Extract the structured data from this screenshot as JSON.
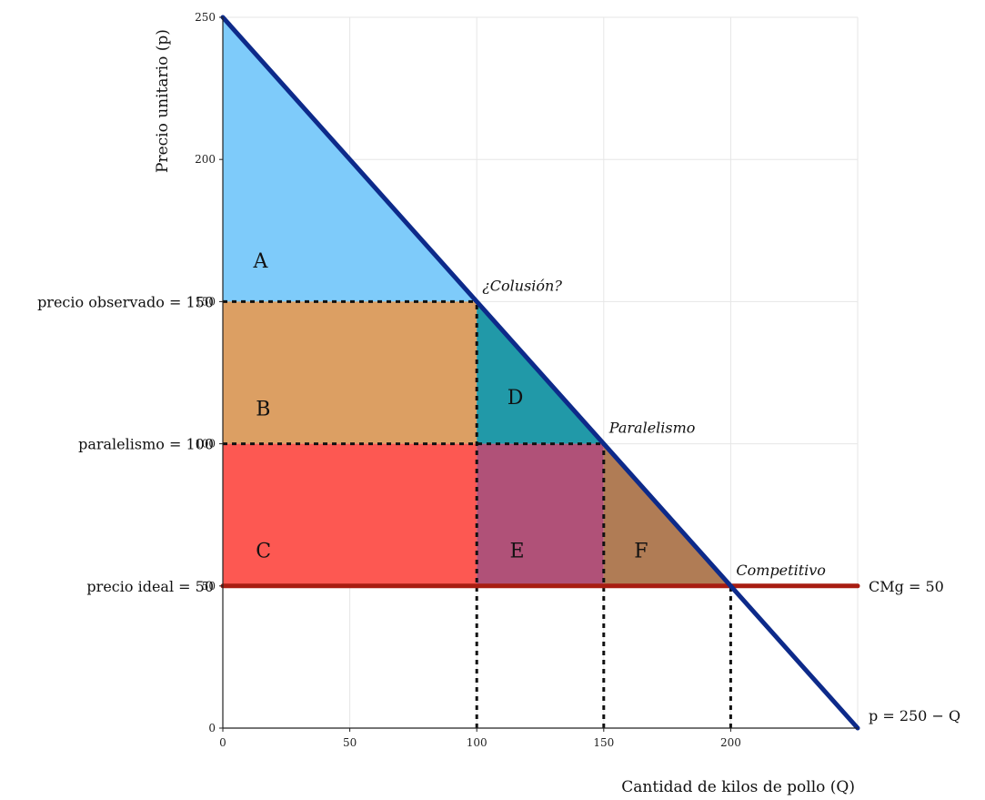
{
  "chart_data": {
    "type": "line",
    "xlabel": "Cantidad de kilos de pollo (Q)",
    "ylabel": "Precio unitario (p)",
    "xlim": [
      0,
      250
    ],
    "ylim": [
      0,
      250
    ],
    "x_ticks": [
      0,
      50,
      100,
      150,
      200
    ],
    "y_ticks": [
      0,
      50,
      100,
      150,
      200,
      250
    ],
    "grid": true,
    "price_labels": [
      {
        "text": "precio observado = 150",
        "y": 150
      },
      {
        "text": "paralelismo = 100",
        "y": 100
      },
      {
        "text": "precio ideal = 50",
        "y": 50
      }
    ],
    "demand": {
      "label": "p = 250 − Q",
      "points": [
        [
          0,
          250
        ],
        [
          250,
          0
        ]
      ],
      "color": "#0d2a8a"
    },
    "marginal_cost": {
      "label": "CMg = 50",
      "y": 50,
      "x_range": [
        0,
        250
      ],
      "color": "#a81d12"
    },
    "regions": [
      {
        "label": "A",
        "color": "#7ecbfa",
        "polygon": [
          [
            0,
            250
          ],
          [
            100,
            150
          ],
          [
            0,
            150
          ]
        ],
        "label_at": [
          12,
          162
        ]
      },
      {
        "label": "B",
        "color": "#dc9f63",
        "polygon": [
          [
            0,
            150
          ],
          [
            100,
            150
          ],
          [
            100,
            100
          ],
          [
            0,
            100
          ]
        ],
        "label_at": [
          13,
          110
        ]
      },
      {
        "label": "C",
        "color": "#fd5852",
        "polygon": [
          [
            0,
            100
          ],
          [
            100,
            100
          ],
          [
            100,
            50
          ],
          [
            0,
            50
          ]
        ],
        "label_at": [
          13,
          60
        ]
      },
      {
        "label": "D",
        "color": "#2199a8",
        "polygon": [
          [
            100,
            150
          ],
          [
            150,
            100
          ],
          [
            100,
            100
          ]
        ],
        "label_at": [
          112,
          114
        ]
      },
      {
        "label": "E",
        "color": "#b05178",
        "polygon": [
          [
            100,
            100
          ],
          [
            150,
            100
          ],
          [
            150,
            50
          ],
          [
            100,
            50
          ]
        ],
        "label_at": [
          113,
          60
        ]
      },
      {
        "label": "F",
        "color": "#b07c55",
        "polygon": [
          [
            150,
            100
          ],
          [
            200,
            50
          ],
          [
            150,
            50
          ]
        ],
        "label_at": [
          162,
          60
        ]
      }
    ],
    "points": [
      {
        "label": "¿Colusión?",
        "x": 100,
        "y": 150
      },
      {
        "label": "Paralelismo",
        "x": 150,
        "y": 100
      },
      {
        "label": "Competitivo",
        "x": 200,
        "y": 50
      }
    ],
    "guide_lines": [
      [
        [
          0,
          150
        ],
        [
          100,
          150
        ]
      ],
      [
        [
          0,
          100
        ],
        [
          150,
          100
        ]
      ],
      [
        [
          100,
          0
        ],
        [
          100,
          150
        ]
      ],
      [
        [
          150,
          0
        ],
        [
          150,
          100
        ]
      ],
      [
        [
          200,
          0
        ],
        [
          200,
          50
        ]
      ]
    ]
  }
}
